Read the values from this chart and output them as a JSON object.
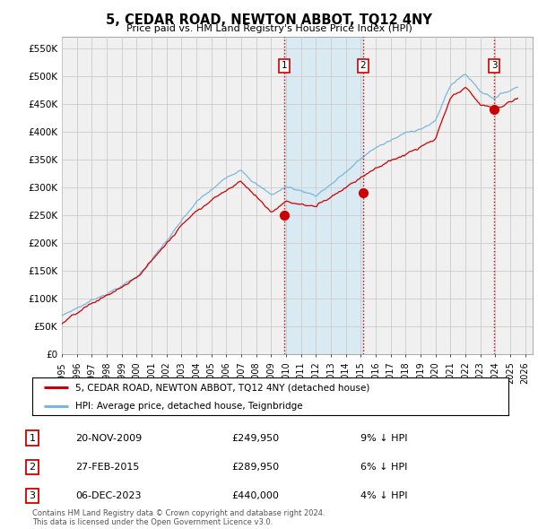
{
  "title": "5, CEDAR ROAD, NEWTON ABBOT, TQ12 4NY",
  "subtitle": "Price paid vs. HM Land Registry's House Price Index (HPI)",
  "ylabel_ticks": [
    "£0",
    "£50K",
    "£100K",
    "£150K",
    "£200K",
    "£250K",
    "£300K",
    "£350K",
    "£400K",
    "£450K",
    "£500K",
    "£550K"
  ],
  "ytick_values": [
    0,
    50000,
    100000,
    150000,
    200000,
    250000,
    300000,
    350000,
    400000,
    450000,
    500000,
    550000
  ],
  "ylim": [
    0,
    570000
  ],
  "xlim_start": 1995.0,
  "xlim_end": 2026.5,
  "xtick_labels": [
    "1995",
    "1996",
    "1997",
    "1998",
    "1999",
    "2000",
    "2001",
    "2002",
    "2003",
    "2004",
    "2005",
    "2006",
    "2007",
    "2008",
    "2009",
    "2010",
    "2011",
    "2012",
    "2013",
    "2014",
    "2015",
    "2016",
    "2017",
    "2018",
    "2019",
    "2020",
    "2021",
    "2022",
    "2023",
    "2024",
    "2025",
    "2026"
  ],
  "xtick_positions": [
    1995,
    1996,
    1997,
    1998,
    1999,
    2000,
    2001,
    2002,
    2003,
    2004,
    2005,
    2006,
    2007,
    2008,
    2009,
    2010,
    2011,
    2012,
    2013,
    2014,
    2015,
    2016,
    2017,
    2018,
    2019,
    2020,
    2021,
    2022,
    2023,
    2024,
    2025,
    2026
  ],
  "hpi_color": "#7ab8d9",
  "sold_color": "#cc0000",
  "vline_color": "#cc0000",
  "grid_color": "#cccccc",
  "background_color": "#f0f0f0",
  "shade_color": "#d0e8f5",
  "legend_label_sold": "5, CEDAR ROAD, NEWTON ABBOT, TQ12 4NY (detached house)",
  "legend_label_hpi": "HPI: Average price, detached house, Teignbridge",
  "sale_dates": [
    2009.9,
    2015.15,
    2023.92
  ],
  "sale_prices": [
    249950,
    289950,
    440000
  ],
  "sale_labels": [
    "1",
    "2",
    "3"
  ],
  "sale_info": [
    {
      "label": "1",
      "date": "20-NOV-2009",
      "price": "£249,950",
      "hpi_diff": "9% ↓ HPI"
    },
    {
      "label": "2",
      "date": "27-FEB-2015",
      "price": "£289,950",
      "hpi_diff": "6% ↓ HPI"
    },
    {
      "label": "3",
      "date": "06-DEC-2023",
      "price": "£440,000",
      "hpi_diff": "4% ↓ HPI"
    }
  ],
  "footnote": "Contains HM Land Registry data © Crown copyright and database right 2024.\nThis data is licensed under the Open Government Licence v3.0."
}
